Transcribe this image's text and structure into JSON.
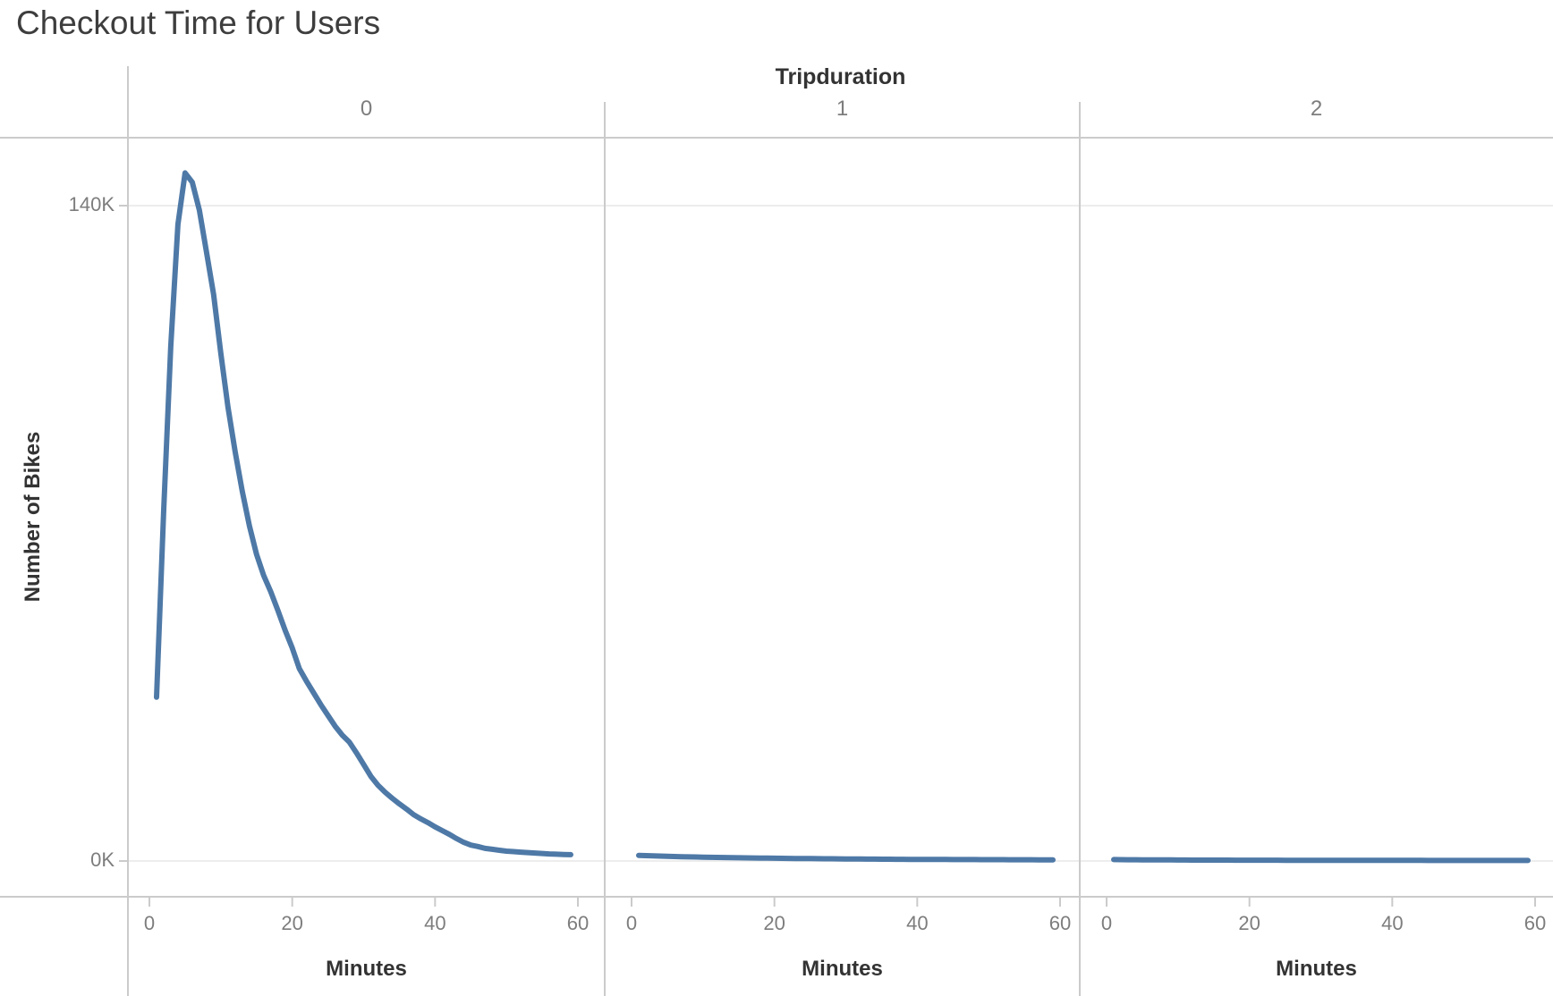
{
  "title": "Checkout Time for Users",
  "facet_header": {
    "field": "Tripduration",
    "labels": [
      "0",
      "1",
      "2"
    ]
  },
  "axes": {
    "y_label": "Number of Bikes",
    "x_label": "Minutes",
    "y_ticks": [
      {
        "label": "140K",
        "value": 140
      },
      {
        "label": "0K",
        "value": 0
      }
    ],
    "x_ticks": [
      {
        "label": "0",
        "value": 0
      },
      {
        "label": "20",
        "value": 20
      },
      {
        "label": "40",
        "value": 40
      },
      {
        "label": "60",
        "value": 60
      }
    ]
  },
  "colors": {
    "line": "#4E79A7",
    "axis_rule": "#cbcbcb",
    "gridline": "#ededed",
    "label_gray": "#7d7d7d",
    "label_dark": "#333333",
    "title": "#3d3d3d"
  },
  "chart_data": {
    "type": "line",
    "title": "Checkout Time for Users",
    "facet_field": "Tripduration",
    "facets": [
      "0",
      "1",
      "2"
    ],
    "xlabel": "Minutes",
    "ylabel": "Number of Bikes",
    "unit": "thousands of bikes",
    "x_range": [
      0,
      60
    ],
    "y_range": [
      0,
      150
    ],
    "y_gridlines": [
      0,
      140
    ],
    "legend": "none",
    "x": [
      1,
      2,
      3,
      4,
      5,
      6,
      7,
      8,
      9,
      10,
      11,
      12,
      13,
      14,
      15,
      16,
      17,
      18,
      19,
      20,
      21,
      22,
      23,
      24,
      25,
      26,
      27,
      28,
      29,
      30,
      31,
      32,
      33,
      34,
      35,
      36,
      37,
      38,
      39,
      40,
      41,
      42,
      43,
      44,
      45,
      46,
      47,
      48,
      49,
      50,
      51,
      52,
      53,
      54,
      55,
      56,
      57,
      58,
      59
    ],
    "series": [
      {
        "name": "0",
        "values": [
          35,
          75,
          110,
          136,
          147,
          145,
          139,
          130,
          121,
          108.5,
          97,
          87.5,
          79,
          71.6,
          65.5,
          61,
          57.5,
          53.5,
          49.3,
          45.5,
          41.1,
          38.4,
          35.9,
          33.4,
          31.1,
          28.8,
          26.9,
          25.4,
          23.1,
          20.6,
          18.1,
          16.2,
          14.7,
          13.4,
          12.2,
          11.1,
          9.9,
          9.0,
          8.2,
          7.3,
          6.5,
          5.7,
          4.8,
          4.0,
          3.4,
          3.1,
          2.7,
          2.5,
          2.3,
          2.1,
          2.0,
          1.9,
          1.8,
          1.7,
          1.6,
          1.5,
          1.45,
          1.4,
          1.35
        ]
      },
      {
        "name": "1",
        "values": [
          1.2,
          1.15,
          1.1,
          1.05,
          1.0,
          0.95,
          0.92,
          0.88,
          0.85,
          0.82,
          0.79,
          0.76,
          0.74,
          0.71,
          0.69,
          0.67,
          0.65,
          0.63,
          0.61,
          0.59,
          0.57,
          0.55,
          0.54,
          0.52,
          0.51,
          0.49,
          0.48,
          0.47,
          0.45,
          0.44,
          0.43,
          0.42,
          0.41,
          0.4,
          0.39,
          0.38,
          0.37,
          0.36,
          0.35,
          0.35,
          0.34,
          0.33,
          0.33,
          0.32,
          0.31,
          0.31,
          0.3,
          0.3,
          0.29,
          0.29,
          0.28,
          0.28,
          0.27,
          0.27,
          0.26,
          0.26,
          0.25,
          0.25,
          0.25
        ]
      },
      {
        "name": "2",
        "values": [
          0.3,
          0.28,
          0.27,
          0.26,
          0.25,
          0.24,
          0.23,
          0.22,
          0.22,
          0.21,
          0.21,
          0.2,
          0.2,
          0.2,
          0.19,
          0.19,
          0.19,
          0.18,
          0.18,
          0.18,
          0.17,
          0.17,
          0.17,
          0.17,
          0.16,
          0.16,
          0.16,
          0.16,
          0.15,
          0.15,
          0.15,
          0.15,
          0.15,
          0.14,
          0.14,
          0.14,
          0.14,
          0.14,
          0.13,
          0.13,
          0.13,
          0.13,
          0.13,
          0.13,
          0.12,
          0.12,
          0.12,
          0.12,
          0.12,
          0.12,
          0.12,
          0.11,
          0.11,
          0.11,
          0.11,
          0.11,
          0.11,
          0.11,
          0.11
        ]
      }
    ]
  }
}
